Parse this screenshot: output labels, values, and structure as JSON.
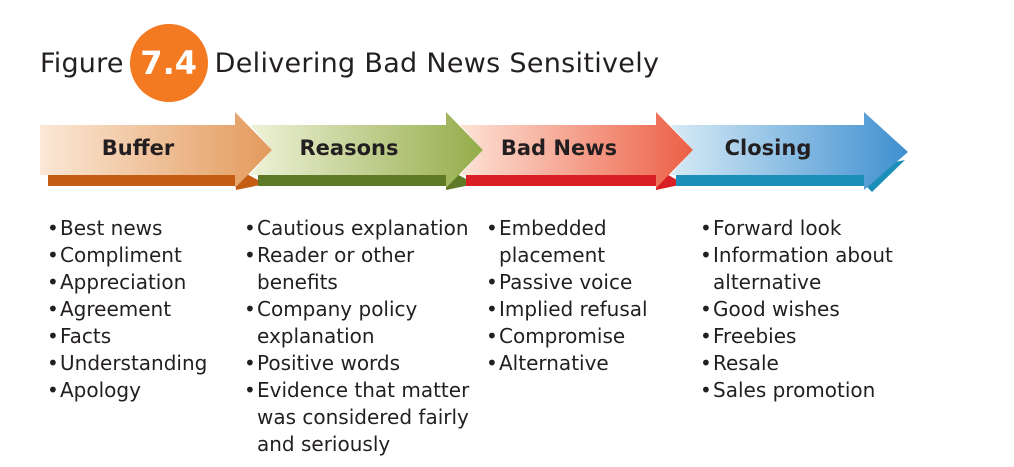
{
  "figure": {
    "label": "Figure",
    "number": "7.4",
    "title": "Delivering Bad News Sensitively",
    "badge_color": "#f37a21"
  },
  "steps": [
    {
      "label": "Buffer",
      "colors": {
        "light": "#fbe8d6",
        "dark": "#e39a5c",
        "bar": "#c45c12"
      },
      "items": [
        "Best news",
        "Compliment",
        "Appreciation",
        "Agreement",
        "Facts",
        "Understanding",
        "Apology"
      ]
    },
    {
      "label": "Reasons",
      "colors": {
        "light": "#eef2d8",
        "dark": "#94ac49",
        "bar": "#5f7a27"
      },
      "items": [
        "Cautious explanation",
        "Reader or other benefits",
        "Company policy explanation",
        "Positive words",
        "Evidence that matter was considered fairly and seriously"
      ]
    },
    {
      "label": "Bad News",
      "colors": {
        "light": "#fde3d6",
        "dark": "#ec5f45",
        "bar": "#d81f26"
      },
      "items": [
        "Embedded placement",
        "Passive voice",
        "Implied refusal",
        "Compromise",
        "Alternative"
      ]
    },
    {
      "label": "Closing",
      "colors": {
        "light": "#d7ebf6",
        "dark": "#3e8fd0",
        "bar": "#1c8fb8"
      },
      "items": [
        "Forward look",
        "Information about alternative",
        "Good wishes",
        "Freebies",
        "Resale",
        "Sales promotion"
      ]
    }
  ]
}
